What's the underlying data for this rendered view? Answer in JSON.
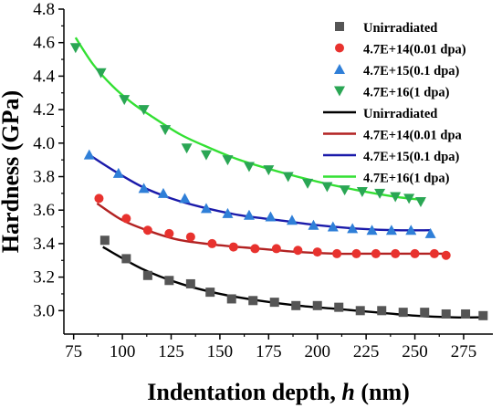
{
  "chart_data": {
    "type": "scatter",
    "xlabel": "Indentation depth, ",
    "xlabel_var": "h",
    "xlabel_unit": " (nm)",
    "ylabel": "Hardness (GPa)",
    "xlim": [
      70,
      290
    ],
    "ylim": [
      2.86,
      4.8
    ],
    "xticks": [
      75,
      100,
      125,
      150,
      175,
      200,
      225,
      250,
      275
    ],
    "yticks": [
      3.0,
      3.2,
      3.4,
      3.6,
      3.8,
      4.0,
      4.2,
      4.4,
      4.6,
      4.8
    ],
    "legend_position": "top-right",
    "series": [
      {
        "name": "Unirradiated",
        "marker": "square",
        "color": "#555555",
        "fit_color": "#000000",
        "fit_name": "Unirradiated",
        "x": [
          91,
          102,
          113,
          124,
          135,
          145,
          156,
          167,
          178,
          189,
          200,
          211,
          222,
          233,
          244,
          255,
          266,
          276,
          285
        ],
        "y": [
          3.42,
          3.31,
          3.21,
          3.18,
          3.16,
          3.11,
          3.07,
          3.06,
          3.05,
          3.03,
          3.03,
          3.02,
          3.0,
          3.0,
          2.99,
          2.99,
          2.98,
          2.98,
          2.97
        ],
        "fit_x": [
          90,
          110,
          130,
          150,
          170,
          190,
          210,
          230,
          250,
          270,
          285
        ],
        "fit_y": [
          3.38,
          3.25,
          3.16,
          3.1,
          3.06,
          3.03,
          3.01,
          2.99,
          2.97,
          2.96,
          2.96
        ]
      },
      {
        "name": "4.7E+14(0.01 dpa)",
        "marker": "circle",
        "color": "#e8322e",
        "fit_color": "#b22222",
        "fit_name": "4.7E+14(0.01 dpa",
        "x": [
          88,
          102,
          113,
          124,
          135,
          146,
          157,
          168,
          179,
          190,
          200,
          210,
          220,
          230,
          240,
          250,
          260,
          266
        ],
        "y": [
          3.67,
          3.55,
          3.48,
          3.46,
          3.44,
          3.4,
          3.38,
          3.37,
          3.37,
          3.36,
          3.35,
          3.34,
          3.34,
          3.34,
          3.34,
          3.34,
          3.34,
          3.33
        ],
        "fit_x": [
          87,
          100,
          115,
          130,
          150,
          170,
          190,
          210,
          230,
          250,
          266
        ],
        "fit_y": [
          3.64,
          3.54,
          3.47,
          3.42,
          3.39,
          3.37,
          3.35,
          3.34,
          3.34,
          3.34,
          3.34
        ]
      },
      {
        "name": "4.7E+15(0.1 dpa)",
        "marker": "triangle-up",
        "color": "#2f7fd8",
        "fit_color": "#1a1aaa",
        "fit_name": "4.7E+15(0.1 dpa)",
        "x": [
          83,
          98,
          111,
          121,
          132,
          143,
          154,
          165,
          176,
          187,
          198,
          208,
          218,
          228,
          238,
          248,
          258
        ],
        "y": [
          3.93,
          3.82,
          3.73,
          3.7,
          3.67,
          3.61,
          3.58,
          3.57,
          3.56,
          3.54,
          3.51,
          3.5,
          3.49,
          3.48,
          3.48,
          3.48,
          3.46
        ],
        "fit_x": [
          83,
          95,
          110,
          125,
          140,
          160,
          180,
          200,
          220,
          240,
          258
        ],
        "fit_y": [
          3.93,
          3.84,
          3.74,
          3.67,
          3.62,
          3.57,
          3.54,
          3.51,
          3.49,
          3.48,
          3.48
        ]
      },
      {
        "name": "4.7E+16(1 dpa)",
        "marker": "triangle-down",
        "color": "#2aa654",
        "fit_color": "#33e033",
        "fit_name": "4.7E+16(1 dpa)",
        "x": [
          76,
          89,
          101,
          111,
          122,
          133,
          143,
          154,
          165,
          175,
          185,
          195,
          205,
          214,
          223,
          232,
          240,
          247,
          253
        ],
        "y": [
          4.57,
          4.42,
          4.26,
          4.2,
          4.08,
          3.97,
          3.93,
          3.9,
          3.86,
          3.84,
          3.8,
          3.76,
          3.74,
          3.72,
          3.71,
          3.7,
          3.68,
          3.67,
          3.65
        ],
        "fit_x": [
          76,
          85,
          95,
          105,
          115,
          130,
          145,
          160,
          180,
          200,
          220,
          240,
          255
        ],
        "fit_y": [
          4.63,
          4.47,
          4.34,
          4.24,
          4.16,
          4.05,
          3.97,
          3.9,
          3.83,
          3.77,
          3.72,
          3.68,
          3.66
        ]
      }
    ]
  }
}
